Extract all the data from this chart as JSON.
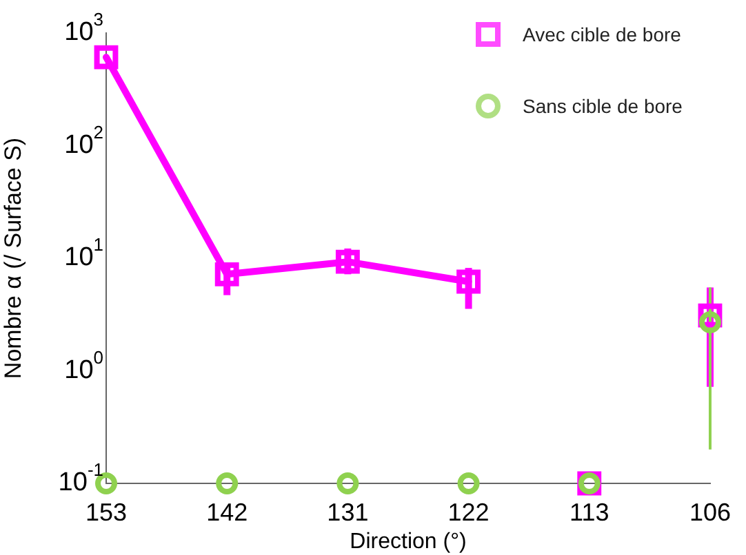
{
  "chart_data": {
    "type": "scatter",
    "xlabel": "Direction (°)",
    "ylabel": "Nombre α (/ Surface S)",
    "categories": [
      "153",
      "142",
      "131",
      "122",
      "113",
      "106"
    ],
    "log": "y",
    "ylim": [
      0.1,
      1000
    ],
    "yticks": [
      {
        "value": 0.1,
        "label": "10$^{-1}$"
      },
      {
        "value": 1,
        "label": "10$^{0}$"
      },
      {
        "value": 10,
        "label": "10$^{1}$"
      },
      {
        "value": 100,
        "label": "10$^{2}$"
      },
      {
        "value": 1000,
        "label": "10$^{3}$"
      }
    ],
    "legend": "top right",
    "grid": false,
    "series": [
      {
        "name": "Avec cible de bore",
        "marker": "square",
        "color": "#ff00ff",
        "values": [
          610,
          7.2,
          9.3,
          6.2,
          0.1,
          3.1
        ],
        "errors": [
          null,
          [
            4.7,
            9
          ],
          [
            7.2,
            12.2
          ],
          [
            3.55,
            8.2
          ],
          null,
          [
            0.72,
            5.5
          ]
        ]
      },
      {
        "type": "line",
        "marker": "none",
        "color": "#ff00ff",
        "values": [
          610,
          7.2,
          9.3,
          6.2,
          null,
          null
        ]
      },
      {
        "name": "Sans cible de bore",
        "marker": "circle",
        "color": "#8fd14f",
        "values": [
          0.1,
          0.1,
          0.1,
          0.1,
          0.1,
          2.7
        ],
        "errors": [
          null,
          null,
          null,
          null,
          null,
          [
            0.2,
            5.5
          ]
        ]
      }
    ]
  }
}
